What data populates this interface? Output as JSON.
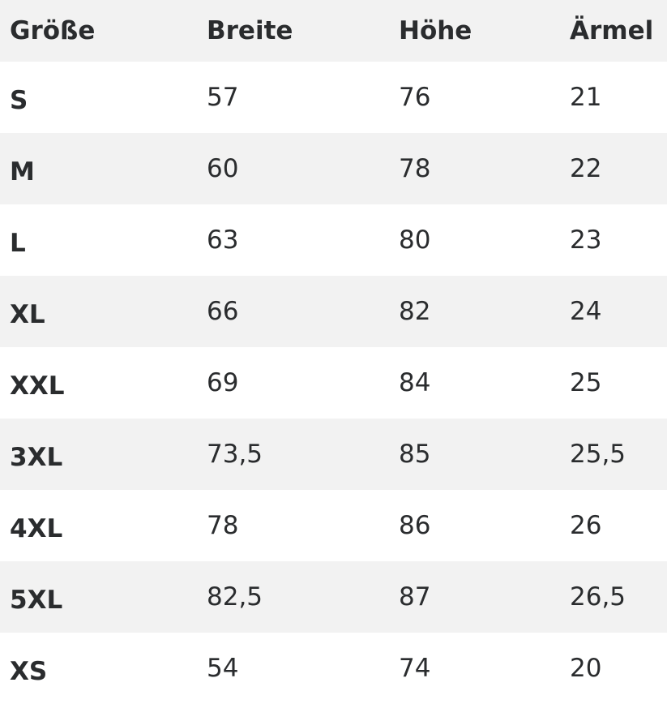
{
  "headers": [
    "Größe",
    "Breite",
    "Höhe",
    "Ärmel"
  ],
  "rows": [
    [
      "S",
      "57",
      "76",
      "21"
    ],
    [
      "M",
      "60",
      "78",
      "22"
    ],
    [
      "L",
      "63",
      "80",
      "23"
    ],
    [
      "XL",
      "66",
      "82",
      "24"
    ],
    [
      "XXL",
      "69",
      "84",
      "25"
    ],
    [
      "3XL",
      "73,5",
      "85",
      "25,5"
    ],
    [
      "4XL",
      "78",
      "86",
      "26"
    ],
    [
      "5XL",
      "82,5",
      "87",
      "26,5"
    ],
    [
      "XS",
      "54",
      "74",
      "20"
    ]
  ],
  "colors": {
    "stripe": "#f2f2f2",
    "text": "#2a2c2e"
  }
}
